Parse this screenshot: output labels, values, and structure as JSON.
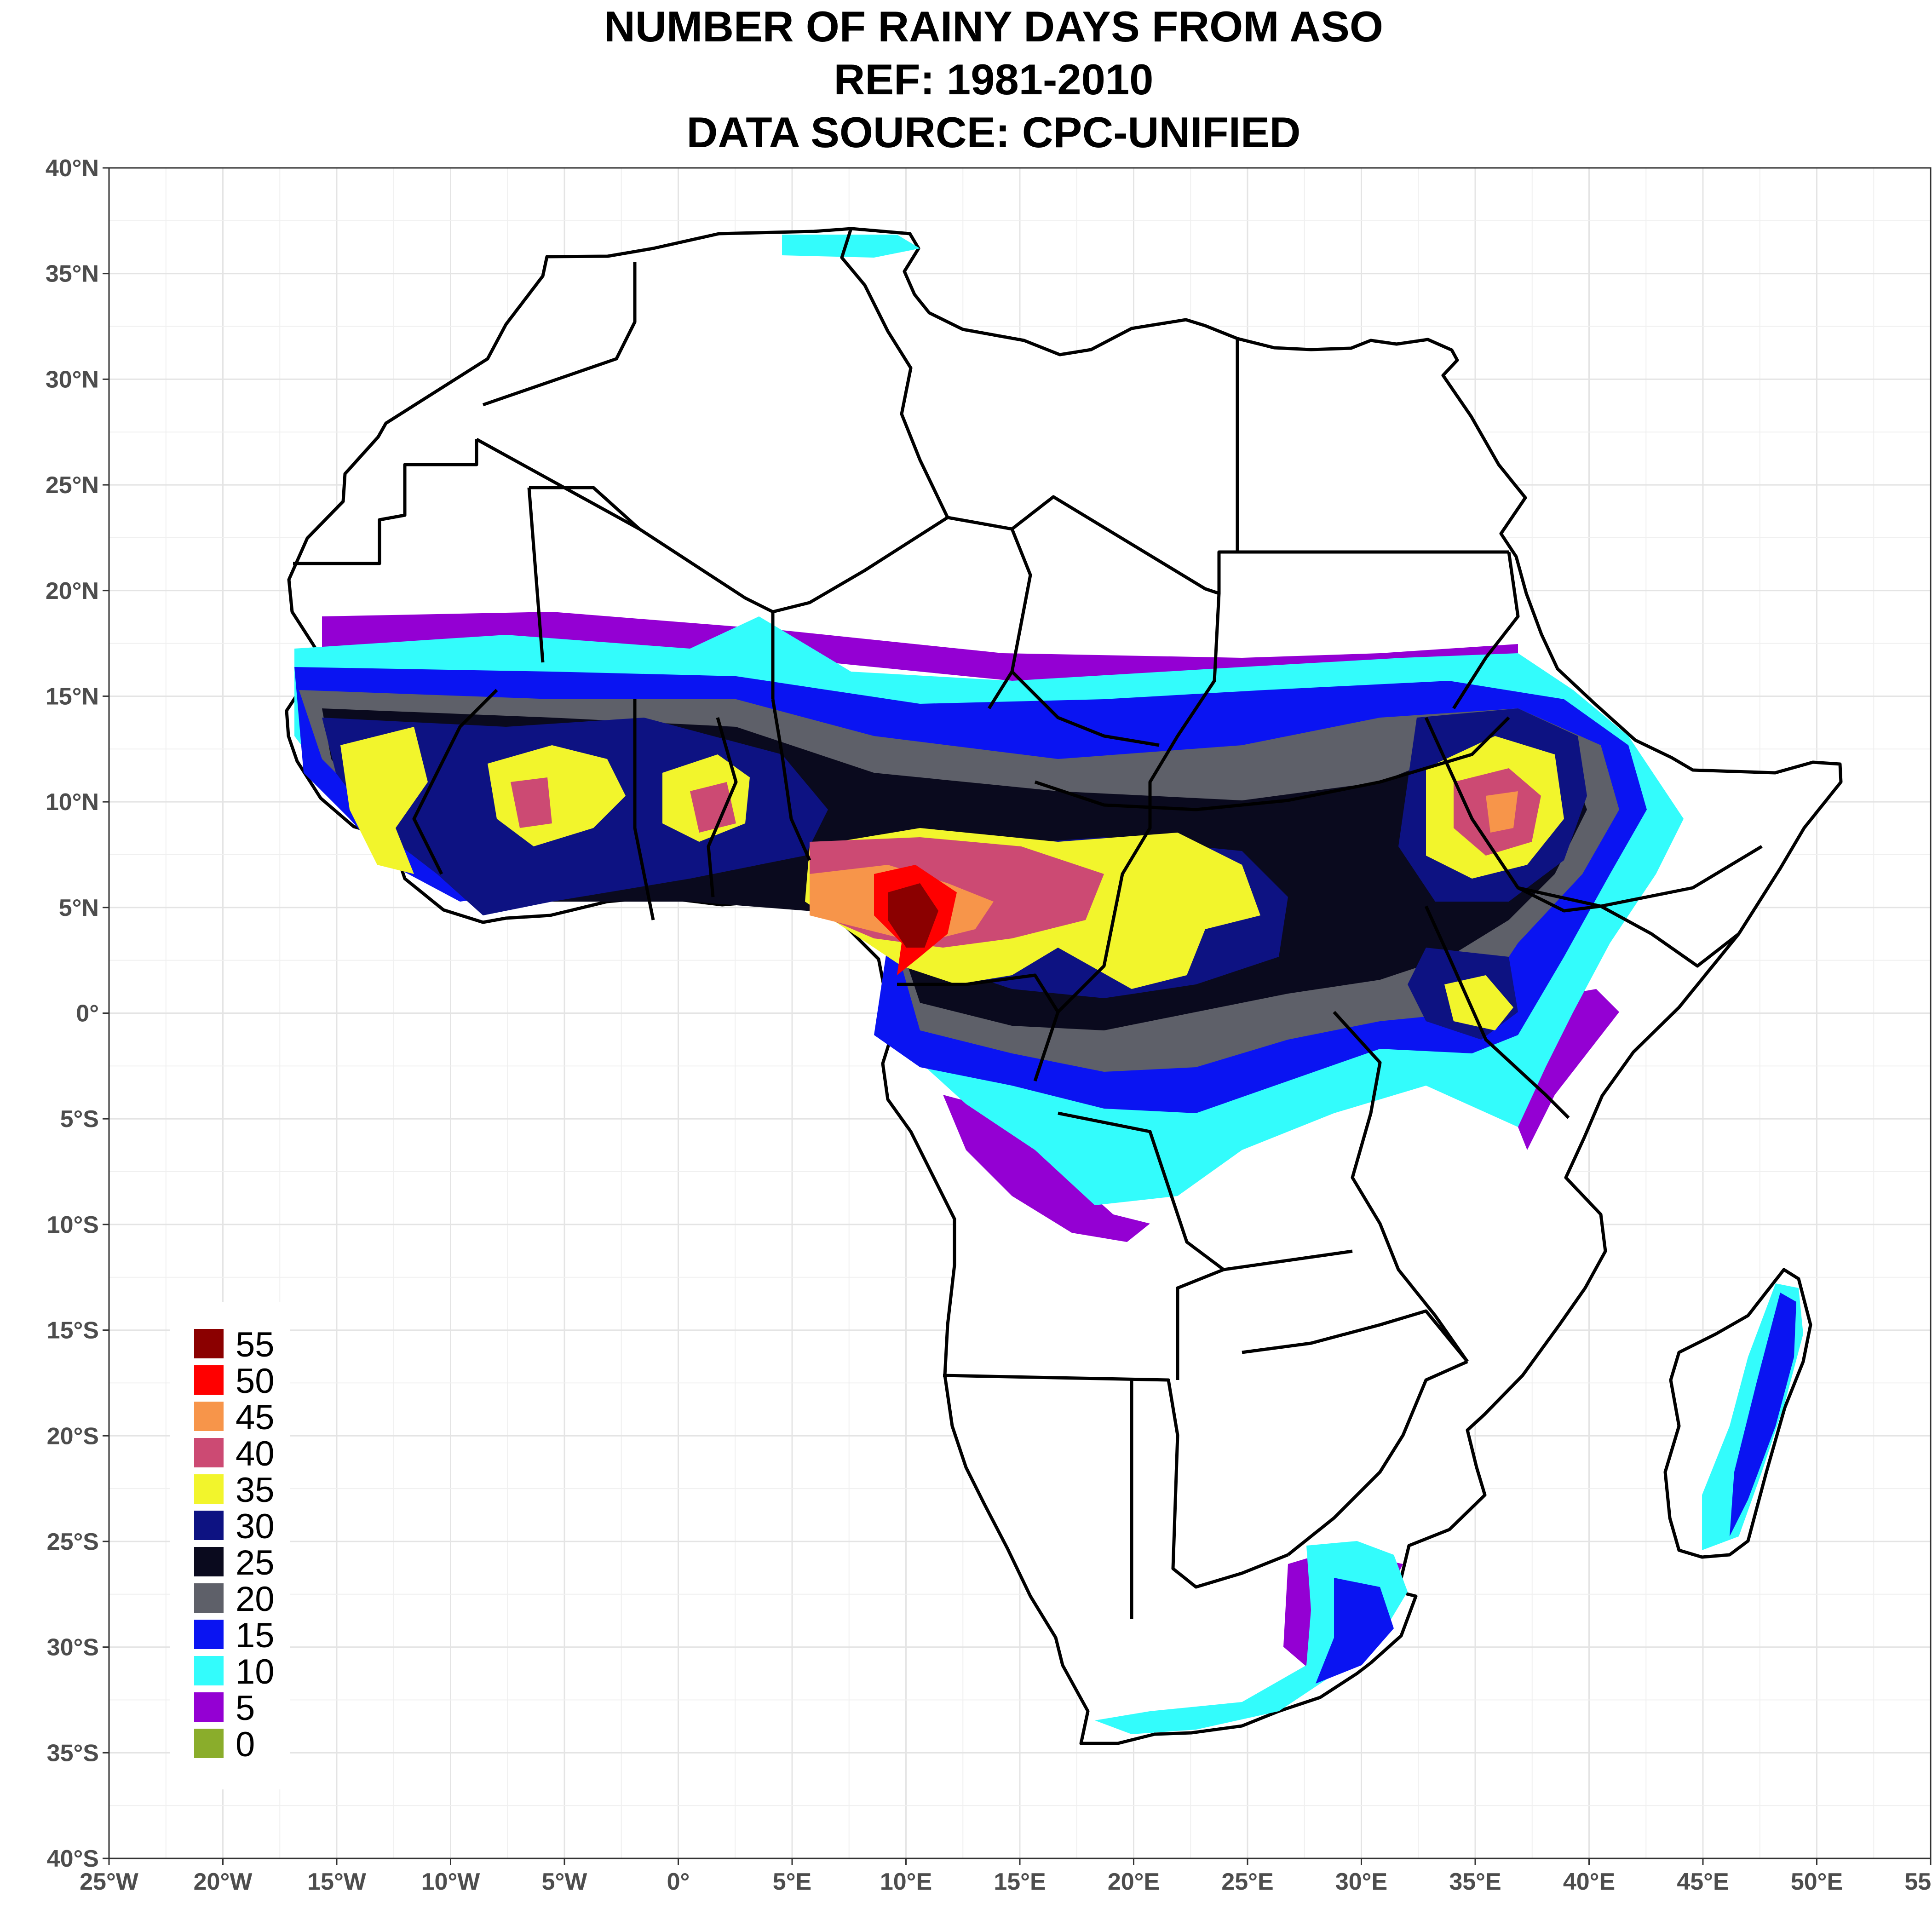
{
  "title": {
    "line1": "NUMBER OF RAINY DAYS FROM ASO",
    "line2": "REF: 1981-2010",
    "line3": "DATA SOURCE: CPC-UNIFIED"
  },
  "axes": {
    "x_ticks": [
      {
        "value": -25,
        "label": "25°W"
      },
      {
        "value": -20,
        "label": "20°W"
      },
      {
        "value": -15,
        "label": "15°W"
      },
      {
        "value": -10,
        "label": "10°W"
      },
      {
        "value": -5,
        "label": "5°W"
      },
      {
        "value": 0,
        "label": "0°"
      },
      {
        "value": 5,
        "label": "5°E"
      },
      {
        "value": 10,
        "label": "10°E"
      },
      {
        "value": 15,
        "label": "15°E"
      },
      {
        "value": 20,
        "label": "20°E"
      },
      {
        "value": 25,
        "label": "25°E"
      },
      {
        "value": 30,
        "label": "30°E"
      },
      {
        "value": 35,
        "label": "35°E"
      },
      {
        "value": 40,
        "label": "40°E"
      },
      {
        "value": 45,
        "label": "45°E"
      },
      {
        "value": 50,
        "label": "50°E"
      },
      {
        "value": 55,
        "label": "55°E"
      }
    ],
    "y_ticks": [
      {
        "value": 40,
        "label": "40°N"
      },
      {
        "value": 35,
        "label": "35°N"
      },
      {
        "value": 30,
        "label": "30°N"
      },
      {
        "value": 25,
        "label": "25°N"
      },
      {
        "value": 20,
        "label": "20°N"
      },
      {
        "value": 15,
        "label": "15°N"
      },
      {
        "value": 10,
        "label": "10°N"
      },
      {
        "value": 5,
        "label": "5°N"
      },
      {
        "value": 0,
        "label": "0°"
      },
      {
        "value": -5,
        "label": "5°S"
      },
      {
        "value": -10,
        "label": "10°S"
      },
      {
        "value": -15,
        "label": "15°S"
      },
      {
        "value": -20,
        "label": "20°S"
      },
      {
        "value": -25,
        "label": "25°S"
      },
      {
        "value": -30,
        "label": "30°S"
      },
      {
        "value": -35,
        "label": "35°S"
      },
      {
        "value": -40,
        "label": "40°S"
      }
    ],
    "xlim": [
      -25,
      55
    ],
    "ylim": [
      -40,
      40
    ],
    "grid": true
  },
  "legend": {
    "placement": "bottom-left",
    "items": [
      {
        "label": "55",
        "color": "#8b0000"
      },
      {
        "label": "50",
        "color": "#ff0000"
      },
      {
        "label": "45",
        "color": "#f7954a"
      },
      {
        "label": "40",
        "color": "#cc4a73"
      },
      {
        "label": "35",
        "color": "#f2f52c"
      },
      {
        "label": "30",
        "color": "#0d1282"
      },
      {
        "label": "25",
        "color": "#0a0a1e"
      },
      {
        "label": "20",
        "color": "#5e6069"
      },
      {
        "label": "15",
        "color": "#0a14f2"
      },
      {
        "label": "10",
        "color": "#33fcfc"
      },
      {
        "label": "5",
        "color": "#9400d3"
      },
      {
        "label": "0",
        "color": "#8aad2b"
      }
    ]
  }
}
